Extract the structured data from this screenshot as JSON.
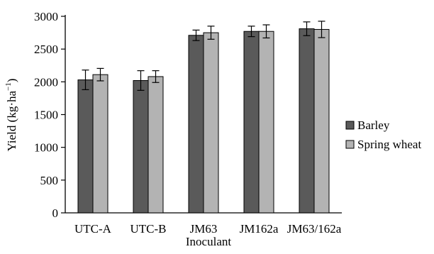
{
  "chart_data": {
    "type": "bar",
    "xlabel": "Inoculant",
    "ylabel": "Yield (kg·ha",
    "ylabel_superscript": "−1",
    "ylabel_close": ")",
    "ylim": [
      0,
      3000
    ],
    "yticks": [
      0,
      500,
      1000,
      1500,
      2000,
      2500,
      3000
    ],
    "ytick_labels": [
      "0",
      "500",
      "1000",
      "1500",
      "2000",
      "2500",
      "3000"
    ],
    "categories": [
      "UTC-A",
      "UTC-B",
      "JM63",
      "JM162a",
      "JM63/162a"
    ],
    "series": [
      {
        "name": "Barley",
        "color": "#5a5a5a",
        "values": [
          2030,
          2020,
          2710,
          2770,
          2810
        ],
        "errors": [
          150,
          150,
          80,
          80,
          105
        ]
      },
      {
        "name": "Spring wheat",
        "color": "#b3b3b3",
        "values": [
          2110,
          2080,
          2750,
          2770,
          2800
        ],
        "errors": [
          95,
          90,
          100,
          100,
          125
        ]
      }
    ],
    "grid": false,
    "legend_position": "right"
  }
}
